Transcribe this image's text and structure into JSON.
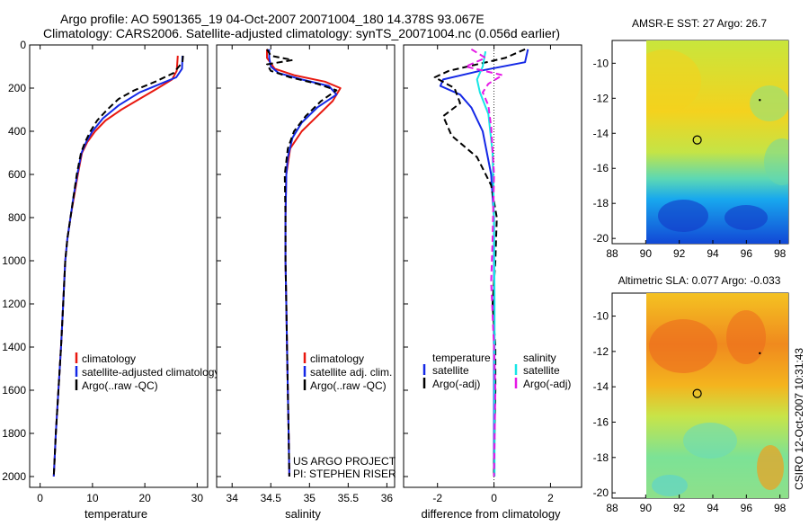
{
  "header": {
    "line1": "Argo profile: AO 5901365_19 04-Oct-2007 20071004_180 14.378S 93.067E",
    "line2": "Climatology: CARS2006. Satellite-adjusted climatology: synTS_20071004.nc (0.056d earlier)"
  },
  "credits": {
    "project": "US ARGO PROJECT",
    "pi": "PI: STEPHEN RISER",
    "stamp": "CSIRO 12-Oct-2007 10:31:43"
  },
  "colors": {
    "climatology": "#e8180f",
    "satellite": "#1428e6",
    "argo": "#000000",
    "sat_salinity": "#18e6e6",
    "argo_salinity": "#e619e6"
  },
  "chart_data": [
    {
      "type": "line",
      "id": "temperature",
      "xlabel": "temperature",
      "ylabel": "",
      "xlim": [
        -2,
        32
      ],
      "ylim": [
        2050,
        0
      ],
      "xticks": [
        "0",
        "10",
        "20",
        "30"
      ],
      "xtick_values": [
        0,
        10,
        20,
        30
      ],
      "yticks": [
        "0",
        "200",
        "400",
        "600",
        "800",
        "1000",
        "1200",
        "1400",
        "1600",
        "1800",
        "2000"
      ],
      "ytick_values": [
        0,
        200,
        400,
        600,
        800,
        1000,
        1200,
        1400,
        1600,
        1800,
        2000
      ],
      "legend": [
        "climatology",
        "satellite-adjusted climatology",
        "Argo(..raw -QC)"
      ],
      "legend_position": "lower-middle",
      "series": [
        {
          "name": "climatology",
          "style": "solid",
          "color": "#e8180f",
          "points": [
            [
              26.3,
              50
            ],
            [
              26.1,
              120
            ],
            [
              25.2,
              160
            ],
            [
              22.5,
              200
            ],
            [
              19,
              250
            ],
            [
              15.5,
              300
            ],
            [
              12.5,
              350
            ],
            [
              10.5,
              400
            ],
            [
              9,
              450
            ],
            [
              8,
              500
            ],
            [
              7.2,
              600
            ],
            [
              6.5,
              700
            ],
            [
              5.8,
              800
            ],
            [
              5.2,
              900
            ],
            [
              4.8,
              1000
            ],
            [
              4.4,
              1200
            ],
            [
              4,
              1400
            ],
            [
              3.5,
              1600
            ],
            [
              3,
              1800
            ],
            [
              2.6,
              2000
            ]
          ]
        },
        {
          "name": "satellite-adjusted climatology",
          "style": "solid",
          "color": "#1428e6",
          "points": [
            [
              27.2,
              50
            ],
            [
              27.1,
              110
            ],
            [
              26,
              150
            ],
            [
              23,
              180
            ],
            [
              19,
              220
            ],
            [
              15,
              280
            ],
            [
              12,
              340
            ],
            [
              10,
              400
            ],
            [
              8.8,
              450
            ],
            [
              7.9,
              500
            ],
            [
              7.1,
              600
            ],
            [
              6.4,
              700
            ],
            [
              5.8,
              800
            ],
            [
              5.2,
              900
            ],
            [
              4.8,
              1000
            ],
            [
              4.4,
              1200
            ],
            [
              4,
              1400
            ],
            [
              3.5,
              1600
            ],
            [
              3,
              1800
            ],
            [
              2.6,
              2000
            ]
          ]
        },
        {
          "name": "Argo(..raw -QC)",
          "style": "dashed",
          "color": "#000000",
          "points": [
            [
              27.3,
              50
            ],
            [
              27.2,
              80
            ],
            [
              25.5,
              130
            ],
            [
              22,
              170
            ],
            [
              18,
              210
            ],
            [
              15,
              250
            ],
            [
              12.8,
              300
            ],
            [
              10.9,
              350
            ],
            [
              9.6,
              400
            ],
            [
              8.6,
              450
            ],
            [
              7.8,
              500
            ],
            [
              7,
              600
            ],
            [
              6.4,
              700
            ],
            [
              5.8,
              800
            ],
            [
              5.2,
              900
            ],
            [
              4.8,
              1000
            ],
            [
              4.4,
              1200
            ],
            [
              4,
              1400
            ],
            [
              3.5,
              1600
            ],
            [
              3,
              1800
            ],
            [
              2.6,
              2000
            ]
          ]
        }
      ]
    },
    {
      "type": "line",
      "id": "salinity",
      "xlabel": "salinity",
      "xlim": [
        33.8,
        36.1
      ],
      "ylim": [
        2050,
        0
      ],
      "xticks": [
        "34",
        "34.5",
        "35",
        "35.5",
        "36"
      ],
      "xtick_values": [
        34,
        34.5,
        35,
        35.5,
        36
      ],
      "legend": [
        "climatology",
        "satellite adj. clim.",
        "Argo(..raw -QC)"
      ],
      "legend_position": "lower-right",
      "series": [
        {
          "name": "climatology",
          "style": "solid",
          "color": "#e8180f",
          "points": [
            [
              34.45,
              20
            ],
            [
              34.45,
              60
            ],
            [
              34.55,
              110
            ],
            [
              34.8,
              140
            ],
            [
              35.2,
              170
            ],
            [
              35.4,
              200
            ],
            [
              35.3,
              260
            ],
            [
              35.1,
              330
            ],
            [
              34.9,
              400
            ],
            [
              34.75,
              480
            ],
            [
              34.7,
              600
            ],
            [
              34.69,
              800
            ],
            [
              34.69,
              1000
            ],
            [
              34.7,
              1200
            ],
            [
              34.71,
              1400
            ],
            [
              34.72,
              1600
            ],
            [
              34.73,
              1800
            ],
            [
              34.74,
              2000
            ]
          ]
        },
        {
          "name": "satellite adj. clim.",
          "style": "solid",
          "color": "#1428e6",
          "points": [
            [
              34.48,
              20
            ],
            [
              34.48,
              60
            ],
            [
              34.5,
              100
            ],
            [
              34.6,
              130
            ],
            [
              34.9,
              160
            ],
            [
              35.25,
              190
            ],
            [
              35.35,
              230
            ],
            [
              35.1,
              290
            ],
            [
              34.9,
              360
            ],
            [
              34.78,
              430
            ],
            [
              34.72,
              520
            ],
            [
              34.7,
              600
            ],
            [
              34.69,
              800
            ],
            [
              34.69,
              1000
            ],
            [
              34.7,
              1200
            ],
            [
              34.71,
              1400
            ],
            [
              34.72,
              1600
            ],
            [
              34.73,
              1800
            ],
            [
              34.74,
              2000
            ]
          ]
        },
        {
          "name": "Argo(..raw -QC)",
          "style": "dashed",
          "color": "#000000",
          "points": [
            [
              34.45,
              20
            ],
            [
              34.5,
              50
            ],
            [
              34.78,
              70
            ],
            [
              34.45,
              90
            ],
            [
              34.5,
              120
            ],
            [
              34.75,
              150
            ],
            [
              35.1,
              180
            ],
            [
              35.35,
              210
            ],
            [
              35.15,
              260
            ],
            [
              34.95,
              330
            ],
            [
              34.8,
              400
            ],
            [
              34.72,
              480
            ],
            [
              34.68,
              600
            ],
            [
              34.69,
              800
            ],
            [
              34.69,
              1000
            ],
            [
              34.7,
              1200
            ],
            [
              34.71,
              1400
            ],
            [
              34.72,
              1600
            ],
            [
              34.73,
              1800
            ],
            [
              34.74,
              2000
            ]
          ]
        }
      ]
    },
    {
      "type": "line",
      "id": "difference",
      "xlabel": "difference from climatology",
      "xlim": [
        -3.2,
        3.1
      ],
      "ylim": [
        2050,
        0
      ],
      "xticks": [
        "-2",
        "0",
        "2"
      ],
      "xtick_values": [
        -2,
        0,
        2
      ],
      "legend_temperature_title": "temperature",
      "legend_salinity_title": "salinity",
      "legend": [
        "satellite",
        "Argo(-adj)",
        "satellite",
        "Argo(-adj)"
      ],
      "legend_position": "lower-middle",
      "series": [
        {
          "name": "temperature satellite",
          "style": "solid",
          "color": "#1428e6",
          "points": [
            [
              1.2,
              20
            ],
            [
              1.1,
              80
            ],
            [
              -0.5,
              120
            ],
            [
              -1.8,
              160
            ],
            [
              -1.9,
              190
            ],
            [
              -1.2,
              230
            ],
            [
              -0.8,
              290
            ],
            [
              -0.4,
              400
            ],
            [
              -0.1,
              600
            ],
            [
              0,
              800
            ],
            [
              0,
              1200
            ],
            [
              0,
              1600
            ],
            [
              0,
              2000
            ]
          ]
        },
        {
          "name": "temperature Argo(-adj)",
          "style": "dashed",
          "color": "#000000",
          "points": [
            [
              1.1,
              20
            ],
            [
              0.4,
              60
            ],
            [
              -1.6,
              120
            ],
            [
              -2.1,
              150
            ],
            [
              -1.4,
              200
            ],
            [
              -1.2,
              270
            ],
            [
              -1.8,
              330
            ],
            [
              -1.5,
              420
            ],
            [
              -0.6,
              520
            ],
            [
              -0.1,
              650
            ],
            [
              0.1,
              800
            ],
            [
              0.05,
              1000
            ],
            [
              -0.05,
              1200
            ],
            [
              0.05,
              1400
            ],
            [
              0.05,
              1600
            ],
            [
              0.02,
              1800
            ],
            [
              0,
              2000
            ]
          ]
        },
        {
          "name": "salinity satellite",
          "style": "solid",
          "color": "#18e6e6",
          "points": [
            [
              -0.3,
              30
            ],
            [
              -0.4,
              100
            ],
            [
              -0.6,
              160
            ],
            [
              -0.5,
              220
            ],
            [
              -0.2,
              320
            ],
            [
              -0.05,
              500
            ],
            [
              0,
              800
            ],
            [
              0.02,
              1200
            ],
            [
              0.02,
              1600
            ],
            [
              0.02,
              2000
            ]
          ]
        },
        {
          "name": "salinity Argo(-adj)",
          "style": "dashed",
          "color": "#e619e6",
          "points": [
            [
              -0.8,
              20
            ],
            [
              -0.3,
              60
            ],
            [
              -1.0,
              100
            ],
            [
              0.3,
              140
            ],
            [
              -0.2,
              180
            ],
            [
              -0.4,
              220
            ],
            [
              -0.2,
              280
            ],
            [
              -0.1,
              380
            ],
            [
              0,
              600
            ],
            [
              -0.05,
              900
            ],
            [
              -0.1,
              1100
            ],
            [
              0,
              1400
            ],
            [
              0.05,
              1600
            ],
            [
              0,
              2000
            ]
          ]
        }
      ]
    },
    {
      "type": "heatmap",
      "id": "sst-map",
      "title": "AMSR-E SST: 27 Argo: 26.7",
      "xlim": [
        88,
        98.5
      ],
      "ylim": [
        -20.3,
        -8.7
      ],
      "xticks": [
        "88",
        "90",
        "92",
        "94",
        "96",
        "98"
      ],
      "xtick_values": [
        88,
        90,
        92,
        94,
        96,
        98
      ],
      "yticks": [
        "-10",
        "-12",
        "-14",
        "-16",
        "-18",
        "-20"
      ],
      "ytick_values": [
        -10,
        -12,
        -14,
        -16,
        -18,
        -20
      ],
      "data_lon_range": [
        90,
        98.5
      ],
      "marker_lon": 93.07,
      "marker_lat": -14.38,
      "track_lon": 96.8,
      "track_lat": -12.1
    },
    {
      "type": "heatmap",
      "id": "sla-map",
      "title": "Altimetric SLA: 0.077 Argo: -0.033",
      "xlim": [
        88,
        98.5
      ],
      "ylim": [
        -20.3,
        -8.7
      ],
      "xticks": [
        "88",
        "90",
        "92",
        "94",
        "96",
        "98"
      ],
      "xtick_values": [
        88,
        90,
        92,
        94,
        96,
        98
      ],
      "yticks": [
        "-10",
        "-12",
        "-14",
        "-16",
        "-18",
        "-20"
      ],
      "ytick_values": [
        -10,
        -12,
        -14,
        -16,
        -18,
        -20
      ],
      "data_lon_range": [
        90,
        98.5
      ],
      "marker_lon": 93.07,
      "marker_lat": -14.38,
      "track_lon": 96.8,
      "track_lat": -12.1
    }
  ]
}
